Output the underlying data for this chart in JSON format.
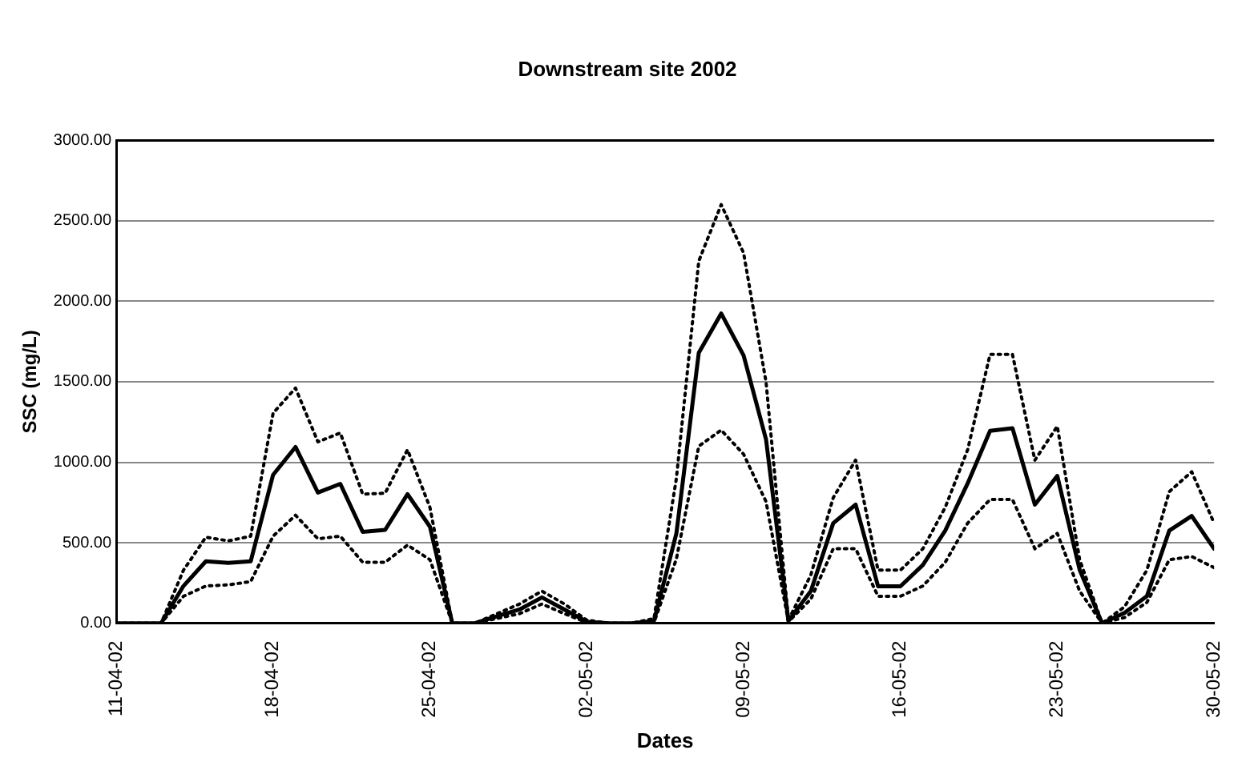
{
  "chart_data": {
    "type": "line",
    "title": "Downstream site 2002",
    "xlabel": "Dates",
    "ylabel": "SSC (mg/L)",
    "x": [
      "2002-04-11",
      "2002-04-12",
      "2002-04-13",
      "2002-04-14",
      "2002-04-15",
      "2002-04-16",
      "2002-04-17",
      "2002-04-18",
      "2002-04-19",
      "2002-04-20",
      "2002-04-21",
      "2002-04-22",
      "2002-04-23",
      "2002-04-24",
      "2002-04-25",
      "2002-04-26",
      "2002-04-27",
      "2002-04-28",
      "2002-04-29",
      "2002-04-30",
      "2002-05-01",
      "2002-05-02",
      "2002-05-03",
      "2002-05-04",
      "2002-05-05",
      "2002-05-06",
      "2002-05-07",
      "2002-05-08",
      "2002-05-09",
      "2002-05-10",
      "2002-05-11",
      "2002-05-12",
      "2002-05-13",
      "2002-05-14",
      "2002-05-15",
      "2002-05-16",
      "2002-05-17",
      "2002-05-18",
      "2002-05-19",
      "2002-05-20",
      "2002-05-21",
      "2002-05-22",
      "2002-05-23",
      "2002-05-24",
      "2002-05-25",
      "2002-05-26",
      "2002-05-27",
      "2002-05-28",
      "2002-05-29",
      "2002-05-30"
    ],
    "series": [
      {
        "color": "#000000",
        "line_style": "solid",
        "values": [
          0,
          0,
          0,
          232,
          385,
          375,
          385,
          922,
          1095,
          812,
          866,
          568,
          580,
          802,
          600,
          0,
          0,
          44,
          86,
          161,
          86,
          10,
          0,
          0,
          15,
          558,
          1680,
          1924,
          1663,
          1143,
          15,
          200,
          622,
          737,
          230,
          230,
          362,
          576,
          869,
          1195,
          1212,
          737,
          915,
          332,
          0,
          65,
          169,
          576,
          667,
          463
        ]
      },
      {
        "color": "#000000",
        "line_style": "dotted",
        "values": [
          0,
          0,
          0,
          330,
          535,
          512,
          541,
          1305,
          1461,
          1127,
          1182,
          802,
          808,
          1078,
          720,
          0,
          0,
          60,
          120,
          200,
          120,
          20,
          0,
          0,
          30,
          900,
          2250,
          2600,
          2300,
          1500,
          20,
          300,
          780,
          1013,
          330,
          330,
          463,
          720,
          1078,
          1670,
          1670,
          1013,
          1224,
          395,
          0,
          102,
          330,
          818,
          941,
          622
        ]
      },
      {
        "color": "#000000",
        "line_style": "dotted",
        "values": [
          0,
          0,
          0,
          168,
          232,
          239,
          259,
          541,
          671,
          525,
          541,
          379,
          379,
          486,
          395,
          0,
          0,
          30,
          60,
          120,
          60,
          5,
          0,
          0,
          5,
          400,
          1100,
          1200,
          1050,
          756,
          10,
          150,
          463,
          463,
          168,
          168,
          232,
          379,
          622,
          769,
          769,
          463,
          558,
          200,
          0,
          36,
          130,
          395,
          415,
          346
        ]
      }
    ],
    "xlim": [
      "2002-04-11",
      "2002-05-30"
    ],
    "xticks": [
      {
        "value": "2002-04-11",
        "label": "11-04-02"
      },
      {
        "value": "2002-04-18",
        "label": "18-04-02"
      },
      {
        "value": "2002-04-25",
        "label": "25-04-02"
      },
      {
        "value": "2002-05-02",
        "label": "02-05-02"
      },
      {
        "value": "2002-05-09",
        "label": "09-05-02"
      },
      {
        "value": "2002-05-16",
        "label": "16-05-02"
      },
      {
        "value": "2002-05-23",
        "label": "23-05-02"
      },
      {
        "value": "2002-05-30",
        "label": "30-05-02"
      }
    ],
    "ylim": [
      0,
      3000
    ],
    "yticks": [
      {
        "value": 0,
        "label": "0.00"
      },
      {
        "value": 500,
        "label": "500.00"
      },
      {
        "value": 1000,
        "label": "1000.00"
      },
      {
        "value": 1500,
        "label": "1500.00"
      },
      {
        "value": 2000,
        "label": "2000.00"
      },
      {
        "value": 2500,
        "label": "2500.00"
      },
      {
        "value": 3000,
        "label": "3000.00"
      }
    ],
    "grid": "y",
    "legend": false,
    "marker": "none"
  }
}
